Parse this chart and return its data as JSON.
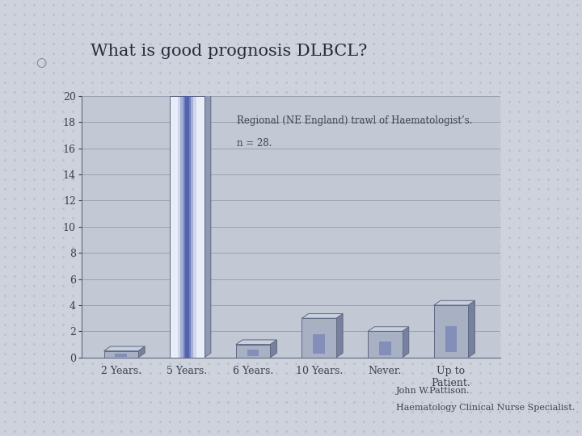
{
  "title": "What is good prognosis DLBCL?",
  "categories": [
    "2 Years.",
    "5 Years.",
    "6 Years.",
    "10 Years.",
    "Never.",
    "Up to\nPatient."
  ],
  "values": [
    0.5,
    20,
    1,
    3,
    2,
    4
  ],
  "ylim": [
    0,
    20
  ],
  "yticks": [
    0,
    2,
    4,
    6,
    8,
    10,
    12,
    14,
    16,
    18,
    20
  ],
  "annotation_line1": "Regional (NE England) trawl of Haematologist’s.",
  "annotation_line2": "n = 28.",
  "credit_line1": "John W.Pattison.",
  "credit_line2": "Haematology Clinical Nurse Specialist.",
  "bg_color": "#cdd2dc",
  "plot_bg_color": "#c2c8d4",
  "face_color": "#a8b0c4",
  "top_color": "#c8d0e0",
  "side_color": "#7880a0",
  "special_face": "#e8eef8",
  "special_top": "#d8e0f0",
  "special_side": "#9098b8",
  "grid_color": "#9aa0b0",
  "dot_color": "#b8bec8",
  "title_color": "#2a2a3a",
  "text_color": "#404050",
  "blue_highlight": "#4858a8"
}
